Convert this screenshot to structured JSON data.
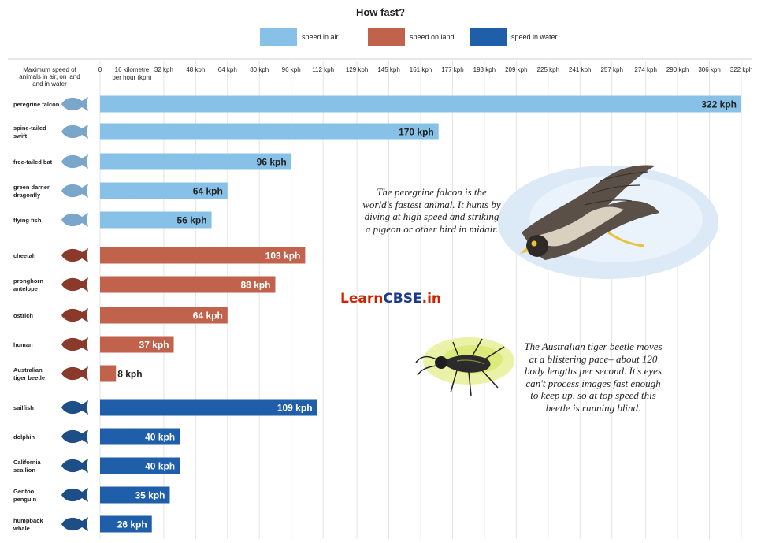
{
  "title": "How fast?",
  "legend": [
    {
      "label": "speed in air",
      "color": "#88c1e8"
    },
    {
      "label": "speed on land",
      "color": "#c0624c"
    },
    {
      "label": "speed in water",
      "color": "#1f5ea8"
    }
  ],
  "axis_caption": [
    "Maximum speed of",
    "animals in air, on land",
    "and in water"
  ],
  "falcon_caption": "The peregrine falcon is the world's fastest animal. It hunts by diving at high speed and striking a pigeon or other bird in midair.",
  "beetle_caption": "The Australian tiger beetle moves at a blistering pace– about 120 body lengths per second. It's eyes can't process images fast enough to keep up, so at top speed this beetle is running blind.",
  "watermark": {
    "part1": "Learn",
    "part2": "CBSE",
    "part3": ".in"
  },
  "colors": {
    "air": "#88c1e8",
    "land": "#c0624c",
    "water": "#1f5ea8",
    "silhouette_air": "#7aa6c9",
    "silhouette_land": "#8a3a2a",
    "silhouette_water": "#1d4f86"
  },
  "chart_data": {
    "type": "bar",
    "orientation": "horizontal",
    "title": "How fast?",
    "xlabel": "16 kilometre per hour (kph)",
    "ylabel": "Maximum speed of animals in air, on land and in water",
    "xlim": [
      0,
      322
    ],
    "ticks": [
      {
        "value": 0,
        "label": "0"
      },
      {
        "value": 16,
        "label": "16 kilometre",
        "label2": "per hour (kph)"
      },
      {
        "value": 32,
        "label": "32 kph"
      },
      {
        "value": 48,
        "label": "48 kph"
      },
      {
        "value": 64,
        "label": "64 kph"
      },
      {
        "value": 80,
        "label": "80 kph"
      },
      {
        "value": 96,
        "label": "96 kph"
      },
      {
        "value": 112,
        "label": "112 kph"
      },
      {
        "value": 129,
        "label": "129 kph"
      },
      {
        "value": 145,
        "label": "145 kph"
      },
      {
        "value": 161,
        "label": "161 kph"
      },
      {
        "value": 177,
        "label": "177 kph"
      },
      {
        "value": 193,
        "label": "193 kph"
      },
      {
        "value": 209,
        "label": "209 kph"
      },
      {
        "value": 225,
        "label": "225 kph"
      },
      {
        "value": 241,
        "label": "241 kph"
      },
      {
        "value": 257,
        "label": "257 kph"
      },
      {
        "value": 274,
        "label": "274 kph"
      },
      {
        "value": 290,
        "label": "290 kph"
      },
      {
        "value": 306,
        "label": "306 kph"
      },
      {
        "value": 322,
        "label": "322 kph"
      }
    ],
    "series": [
      {
        "name": "speed in air",
        "color": "#88c1e8",
        "items": [
          {
            "animal": [
              "peregrine falcon"
            ],
            "value": 322,
            "label": "322 kph"
          },
          {
            "animal": [
              "spine-tailed",
              "swift"
            ],
            "value": 170,
            "label": "170 kph"
          },
          {
            "animal": [
              "free-tailed bat"
            ],
            "value": 96,
            "label": "96 kph"
          },
          {
            "animal": [
              "green darner",
              "dragonfly"
            ],
            "value": 64,
            "label": "64 kph"
          },
          {
            "animal": [
              "flying fish"
            ],
            "value": 56,
            "label": "56 kph"
          }
        ]
      },
      {
        "name": "speed on land",
        "color": "#c0624c",
        "items": [
          {
            "animal": [
              "cheetah"
            ],
            "value": 103,
            "label": "103 kph"
          },
          {
            "animal": [
              "pronghorn",
              "antelope"
            ],
            "value": 88,
            "label": "88 kph"
          },
          {
            "animal": [
              "ostrich"
            ],
            "value": 64,
            "label": "64 kph"
          },
          {
            "animal": [
              "human"
            ],
            "value": 37,
            "label": "37 kph"
          },
          {
            "animal": [
              "Australian",
              "tiger beetle"
            ],
            "value": 8,
            "label": "8 kph"
          }
        ]
      },
      {
        "name": "speed in water",
        "color": "#1f5ea8",
        "items": [
          {
            "animal": [
              "sailfish"
            ],
            "value": 109,
            "label": "109 kph"
          },
          {
            "animal": [
              "dolphin"
            ],
            "value": 40,
            "label": "40 kph"
          },
          {
            "animal": [
              "California",
              "sea lion"
            ],
            "value": 40,
            "label": "40 kph"
          },
          {
            "animal": [
              "Gentoo",
              "penguin"
            ],
            "value": 35,
            "label": "35 kph"
          },
          {
            "animal": [
              "humpback",
              "whale"
            ],
            "value": 26,
            "label": "26 kph"
          }
        ]
      }
    ]
  }
}
